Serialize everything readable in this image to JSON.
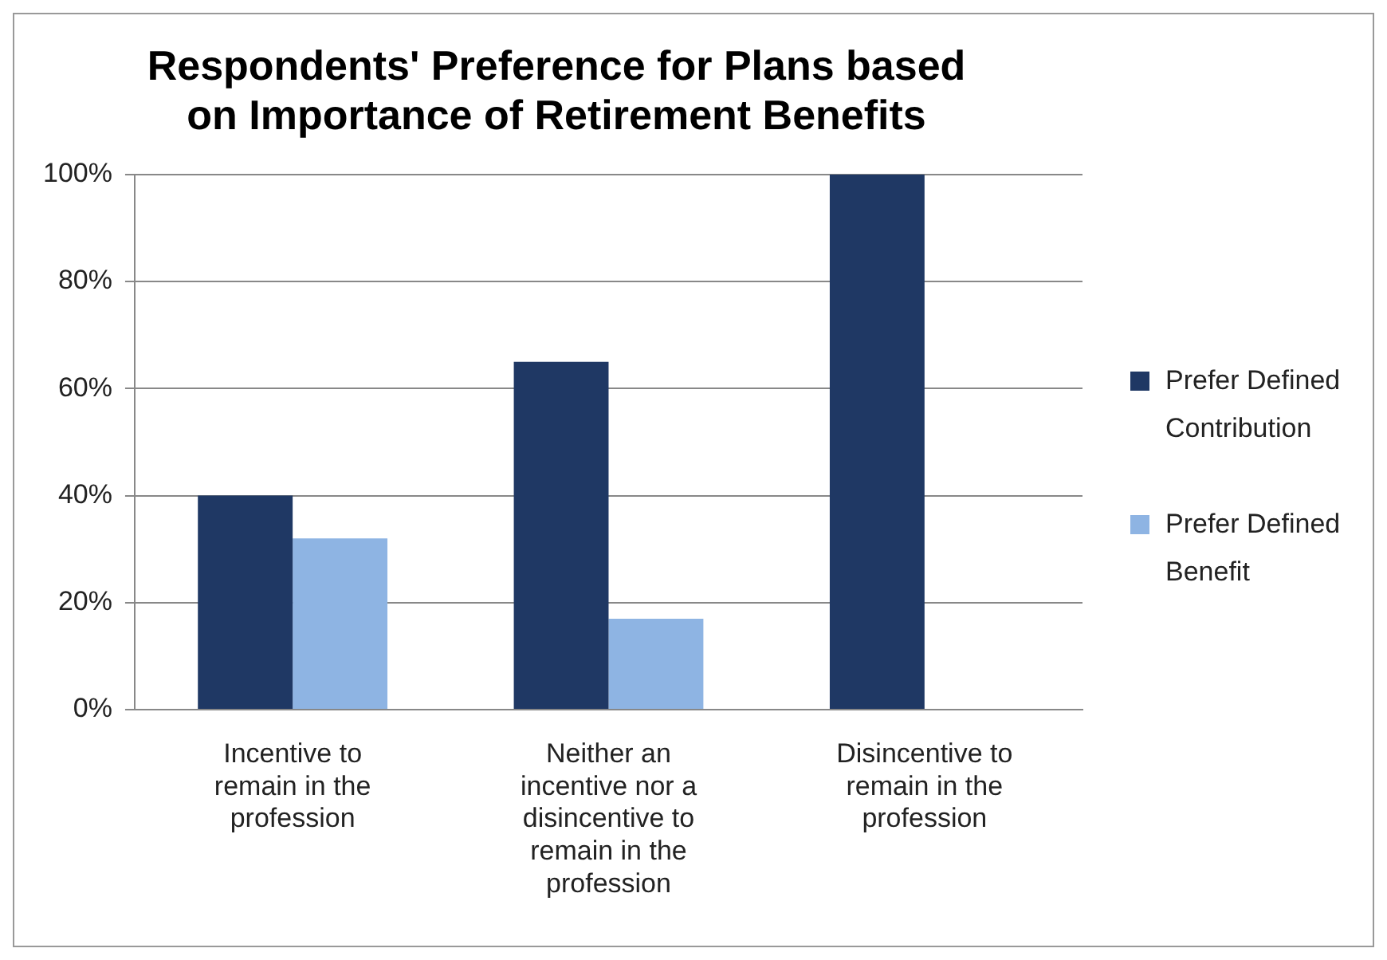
{
  "chart_data": {
    "type": "bar",
    "title": "Respondents' Preference for Plans based on Importance of Retirement Benefits",
    "categories": [
      "Incentive to remain in the profession",
      "Neither an incentive nor a disincentive to remain in the profession",
      "Disincentive to remain in the profession"
    ],
    "series": [
      {
        "name": "Prefer Defined Contribution",
        "color": "#1f3864",
        "values": [
          40,
          65,
          100
        ]
      },
      {
        "name": "Prefer Defined Benefit",
        "color": "#8eb4e3",
        "values": [
          32,
          17,
          0
        ]
      }
    ],
    "ylim": [
      0,
      100
    ],
    "yticks": [
      {
        "value": 0,
        "label": "0%"
      },
      {
        "value": 20,
        "label": "20%"
      },
      {
        "value": 40,
        "label": "40%"
      },
      {
        "value": 60,
        "label": "60%"
      },
      {
        "value": 80,
        "label": "80%"
      },
      {
        "value": 100,
        "label": "100%"
      }
    ],
    "grid": "y",
    "legend": "right"
  }
}
